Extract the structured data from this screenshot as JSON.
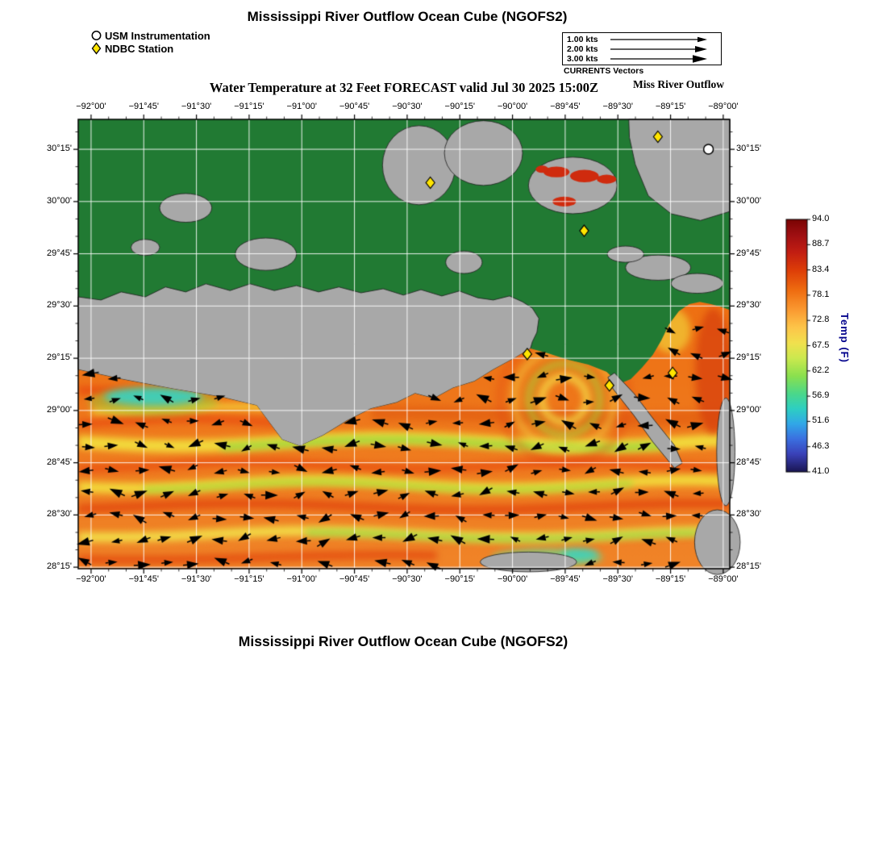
{
  "page": {
    "top_title": "Mississippi River Outflow Ocean Cube (NGOFS2)",
    "bottom_title": "Mississippi River Outflow Ocean Cube (NGOFS2)"
  },
  "legend": {
    "items": [
      {
        "symbol": "circle",
        "label": "USM Instrumentation"
      },
      {
        "symbol": "diamond",
        "label": "NDBC Station"
      }
    ]
  },
  "vector_legend": {
    "entries": [
      {
        "label": "1.00 kts"
      },
      {
        "label": "2.00 kts"
      },
      {
        "label": "3.00 kts"
      }
    ],
    "caption": "CURRENTS Vectors"
  },
  "annotations": {
    "outflow_label": "Miss River Outflow"
  },
  "map": {
    "title": "Water Temperature at 32 Feet FORECAST valid Jul 30 2025 15:00Z"
  },
  "chart_data": {
    "type": "heatmap",
    "title": "Water Temperature at 32 Feet FORECAST valid Jul 30 2025 15:00Z",
    "variable": "Water Temperature",
    "depth_ft": 32,
    "valid_time": "Jul 30 2025 15:00Z",
    "model": "NGOFS2",
    "lon_range": [
      -92.061,
      -88.969
    ],
    "lat_range": [
      28.243,
      30.393
    ],
    "lon_ticks": [
      -92.0,
      -91.75,
      -91.5,
      -91.25,
      -91.0,
      -90.75,
      -90.5,
      -90.25,
      -90.0,
      -89.75,
      -89.5,
      -89.25,
      -89.0
    ],
    "lat_ticks": [
      30.25,
      30.0,
      29.75,
      29.5,
      29.25,
      29.0,
      28.75,
      28.5,
      28.25
    ],
    "x_tick_labels": [
      "−92°00'",
      "−91°45'",
      "−91°30'",
      "−91°15'",
      "−91°00'",
      "−90°45'",
      "−90°30'",
      "−90°15'",
      "−90°00'",
      "−89°45'",
      "−89°30'",
      "−89°15'",
      "−89°00'"
    ],
    "y_tick_labels": [
      "30°15'",
      "30°00'",
      "29°45'",
      "29°30'",
      "29°15'",
      "29°00'",
      "28°45'",
      "28°30'",
      "28°15'"
    ],
    "grid": true,
    "colorbar": {
      "label": "Temp (F)",
      "min": 41.0,
      "max": 94.0,
      "tick_values": [
        94.0,
        88.7,
        83.4,
        78.1,
        72.8,
        67.5,
        62.2,
        56.9,
        51.6,
        46.3,
        41.0
      ],
      "tick_labels": [
        "94.0",
        "88.7",
        "83.4",
        "78.1",
        "72.8",
        "67.5",
        "62.2",
        "56.9",
        "51.6",
        "46.3",
        "41.0"
      ],
      "stops": [
        [
          0.0,
          "#7a0403"
        ],
        [
          0.06,
          "#9e0f12"
        ],
        [
          0.13,
          "#c21e12"
        ],
        [
          0.2,
          "#dd3d08"
        ],
        [
          0.28,
          "#ef6c10"
        ],
        [
          0.36,
          "#fb9b32"
        ],
        [
          0.43,
          "#fdc64a"
        ],
        [
          0.49,
          "#f1e14e"
        ],
        [
          0.55,
          "#cbe94f"
        ],
        [
          0.62,
          "#8be04e"
        ],
        [
          0.69,
          "#4bd88a"
        ],
        [
          0.75,
          "#2ecfc2"
        ],
        [
          0.81,
          "#31a7e8"
        ],
        [
          0.87,
          "#3b6fe0"
        ],
        [
          0.93,
          "#3a41b8"
        ],
        [
          1.0,
          "#1a1552"
        ]
      ]
    },
    "currents": {
      "legend_speeds_kts": [
        1.0,
        2.0,
        3.0
      ]
    },
    "stations": {
      "usm": [
        {
          "lon": -89.07,
          "lat": 30.25
        }
      ],
      "ndbc": [
        {
          "lon": -90.39,
          "lat": 30.09
        },
        {
          "lon": -89.31,
          "lat": 30.31
        },
        {
          "lon": -89.66,
          "lat": 29.86
        },
        {
          "lon": -89.93,
          "lat": 29.27
        },
        {
          "lon": -89.54,
          "lat": 29.12
        },
        {
          "lon": -89.24,
          "lat": 29.18
        }
      ]
    },
    "colors": {
      "land_green": "#217a33",
      "land_gray": "#a8a8a8",
      "coast_line": "#1c1c1c",
      "water_top": "#ee6f12",
      "water_bottom": "#f08428",
      "marker_yellow": "#ffe400",
      "alert_red": "#cf2b0e"
    },
    "features": {
      "coast": [
        [
          0,
          0.557
        ],
        [
          0.066,
          0.578
        ],
        [
          0.146,
          0.6
        ],
        [
          0.22,
          0.618
        ],
        [
          0.274,
          0.637
        ],
        [
          0.313,
          0.713
        ],
        [
          0.34,
          0.727
        ],
        [
          0.375,
          0.704
        ],
        [
          0.412,
          0.671
        ],
        [
          0.449,
          0.644
        ],
        [
          0.489,
          0.63
        ],
        [
          0.517,
          0.61
        ],
        [
          0.546,
          0.621
        ],
        [
          0.575,
          0.598
        ],
        [
          0.608,
          0.583
        ],
        [
          0.637,
          0.557
        ],
        [
          0.67,
          0.531
        ],
        [
          0.694,
          0.51
        ],
        [
          0.722,
          0.521
        ],
        [
          0.752,
          0.535
        ],
        [
          0.783,
          0.546
        ],
        [
          0.811,
          0.562
        ],
        [
          0.83,
          0.589
        ],
        [
          0.848,
          0.578
        ],
        [
          0.865,
          0.553
        ],
        [
          0.882,
          0.524
        ],
        [
          0.895,
          0.492
        ],
        [
          0.907,
          0.456
        ],
        [
          0.922,
          0.427
        ],
        [
          0.938,
          0.411
        ],
        [
          0.954,
          0.406
        ],
        [
          0.971,
          0.411
        ],
        [
          0.988,
          0.418
        ],
        [
          1,
          0.424
        ]
      ],
      "coast_join_index": 18,
      "mainland_top": [
        [
          0,
          0.395
        ],
        [
          0.035,
          0.402
        ],
        [
          0.066,
          0.384
        ],
        [
          0.103,
          0.395
        ],
        [
          0.134,
          0.373
        ],
        [
          0.165,
          0.384
        ],
        [
          0.196,
          0.366
        ],
        [
          0.233,
          0.381
        ],
        [
          0.264,
          0.366
        ],
        [
          0.301,
          0.381
        ],
        [
          0.335,
          0.37
        ],
        [
          0.369,
          0.384
        ],
        [
          0.4,
          0.373
        ],
        [
          0.434,
          0.386
        ],
        [
          0.468,
          0.377
        ],
        [
          0.499,
          0.391
        ],
        [
          0.526,
          0.379
        ],
        [
          0.558,
          0.393
        ],
        [
          0.585,
          0.382
        ],
        [
          0.613,
          0.397
        ],
        [
          0.637,
          0.402
        ],
        [
          0.662,
          0.393
        ],
        [
          0.682,
          0.406
        ],
        [
          0.697,
          0.42
        ],
        [
          0.707,
          0.443
        ],
        [
          0.704,
          0.474
        ],
        [
          0.697,
          0.495
        ]
      ],
      "islands": [
        [
          0.523,
          0.102,
          0.056,
          0.088
        ],
        [
          0.622,
          0.075,
          0.06,
          0.072
        ],
        [
          0.165,
          0.197,
          0.04,
          0.032
        ],
        [
          0.288,
          0.3,
          0.047,
          0.036
        ],
        [
          0.103,
          0.285,
          0.022,
          0.018
        ],
        [
          0.592,
          0.318,
          0.028,
          0.025
        ],
        [
          0.759,
          0.147,
          0.068,
          0.063
        ],
        [
          0.89,
          0.33,
          0.05,
          0.028
        ],
        [
          0.95,
          0.365,
          0.04,
          0.022
        ],
        [
          0.84,
          0.3,
          0.028,
          0.018
        ]
      ],
      "topright_land": [
        [
          0.845,
          0
        ],
        [
          1,
          0
        ],
        [
          1,
          0.205
        ],
        [
          0.955,
          0.225
        ],
        [
          0.91,
          0.21
        ],
        [
          0.875,
          0.17
        ],
        [
          0.855,
          0.1
        ],
        [
          0.846,
          0.04
        ]
      ],
      "red_patches": [
        [
          0.734,
          0.117,
          0.02,
          0.012
        ],
        [
          0.777,
          0.126,
          0.022,
          0.014
        ],
        [
          0.811,
          0.133,
          0.015,
          0.01
        ],
        [
          0.746,
          0.183,
          0.018,
          0.011
        ],
        [
          0.712,
          0.111,
          0.01,
          0.008
        ]
      ],
      "birdfoot": [
        [
          0.823,
          0.564
        ],
        [
          0.853,
          0.61
        ],
        [
          0.885,
          0.671
        ],
        [
          0.915,
          0.725
        ],
        [
          0.927,
          0.765
        ],
        [
          0.915,
          0.776
        ],
        [
          0.882,
          0.718
        ],
        [
          0.853,
          0.659
        ],
        [
          0.821,
          0.6
        ],
        [
          0.813,
          0.574
        ]
      ],
      "gray_patches": [
        [
          0.691,
          0.985,
          0.074,
          0.022
        ],
        [
          0.981,
          0.941,
          0.035,
          0.072
        ],
        [
          0.994,
          0.74,
          0.014,
          0.12
        ]
      ]
    },
    "water_bands": [
      {
        "c": "#e8490f",
        "v": 0.6,
        "th": 11,
        "u0": 0.0,
        "u1": 0.34,
        "amp": 3,
        "f": 16,
        "p": 0.5,
        "a": 0.8
      },
      {
        "c": "#f5d43a",
        "v": 0.645,
        "th": 9,
        "u0": 0.02,
        "u1": 0.3,
        "amp": 3,
        "f": 14,
        "p": 1.2,
        "a": 0.85
      },
      {
        "c": "#e8490f",
        "v": 0.672,
        "th": 9,
        "u0": 0.0,
        "u1": 0.38,
        "amp": 3,
        "f": 16,
        "p": 2.0,
        "a": 0.8
      },
      {
        "c": "#e05a10",
        "v": 0.66,
        "th": 18,
        "u0": 0.45,
        "u1": 1.0,
        "amp": 4,
        "f": 9,
        "p": 0.3,
        "a": 0.65
      },
      {
        "c": "#f2df3d",
        "v": 0.718,
        "th": 16,
        "u0": 0.0,
        "u1": 1.0,
        "amp": 5,
        "f": 10,
        "p": 0.0,
        "a": 0.95
      },
      {
        "c": "#8fd83c",
        "v": 0.722,
        "th": 8,
        "u0": 0.22,
        "u1": 0.9,
        "amp": 5,
        "f": 10,
        "p": 0.0,
        "a": 0.9
      },
      {
        "c": "#e8490f",
        "v": 0.77,
        "th": 10,
        "u0": 0.0,
        "u1": 1.0,
        "amp": 4,
        "f": 12,
        "p": 1.6,
        "a": 0.75
      },
      {
        "c": "#f2df3d",
        "v": 0.812,
        "th": 13,
        "u0": 0.0,
        "u1": 1.0,
        "amp": 5,
        "f": 11,
        "p": 0.7,
        "a": 0.95
      },
      {
        "c": "#9cdb3a",
        "v": 0.816,
        "th": 6,
        "u0": 0.1,
        "u1": 0.85,
        "amp": 5,
        "f": 11,
        "p": 0.7,
        "a": 0.9
      },
      {
        "c": "#e2450d",
        "v": 0.862,
        "th": 11,
        "u0": 0.0,
        "u1": 1.0,
        "amp": 4,
        "f": 9,
        "p": 2.4,
        "a": 0.85
      },
      {
        "c": "#f2e14a",
        "v": 0.923,
        "th": 12,
        "u0": 0.0,
        "u1": 1.0,
        "amp": 4,
        "f": 10,
        "p": 1.1,
        "a": 0.95
      },
      {
        "c": "#86d840",
        "v": 0.927,
        "th": 6,
        "u0": 0.35,
        "u1": 0.95,
        "amp": 4,
        "f": 10,
        "p": 1.1,
        "a": 0.9
      },
      {
        "c": "#e2450d",
        "v": 0.975,
        "th": 10,
        "u0": 0.0,
        "u1": 0.55,
        "amp": 3,
        "f": 8,
        "p": 0.9,
        "a": 0.8
      }
    ],
    "water_blobs": [
      {
        "c": "#8fd83c",
        "x": 0.115,
        "y": 0.628,
        "rx": 0.1,
        "ry": 0.032,
        "a": 0.45
      },
      {
        "c": "#36d2c3",
        "x": 0.115,
        "y": 0.617,
        "rx": 0.075,
        "ry": 0.02,
        "a": 0.9
      },
      {
        "c": "#6fd48a",
        "x": 0.72,
        "y": 0.975,
        "rx": 0.085,
        "ry": 0.02,
        "a": 0.8
      },
      {
        "c": "#36d2c3",
        "x": 0.77,
        "y": 0.968,
        "rx": 0.028,
        "ry": 0.012,
        "a": 0.85
      },
      {
        "c": "#d8430e",
        "x": 0.975,
        "y": 0.56,
        "rx": 0.028,
        "ry": 0.14,
        "a": 0.8
      },
      {
        "c": "#f2df3d",
        "x": 0.91,
        "y": 0.47,
        "rx": 0.03,
        "ry": 0.05,
        "a": 0.6
      },
      {
        "c": "#d8430e",
        "x": 0.86,
        "y": 0.43,
        "rx": 0.05,
        "ry": 0.025,
        "a": 0.6
      }
    ],
    "plume": {
      "x": 0.746,
      "y": 0.623,
      "rings": [
        {
          "r": 28,
          "c": "#f2e14a",
          "w": 9,
          "a": 0.8
        },
        {
          "r": 44,
          "c": "#9cdb3a",
          "w": 9,
          "a": 0.55
        },
        {
          "r": 62,
          "c": "#f2e14a",
          "w": 9,
          "a": 0.45
        },
        {
          "r": 80,
          "c": "#e2450d",
          "w": 10,
          "a": 0.35
        }
      ]
    },
    "vector_field": {
      "rows": 11,
      "cols": 25,
      "u0": 0.014,
      "du": 0.0408,
      "v0": 0.468,
      "dv": 0.052,
      "westward_bias": 0.58
    }
  }
}
